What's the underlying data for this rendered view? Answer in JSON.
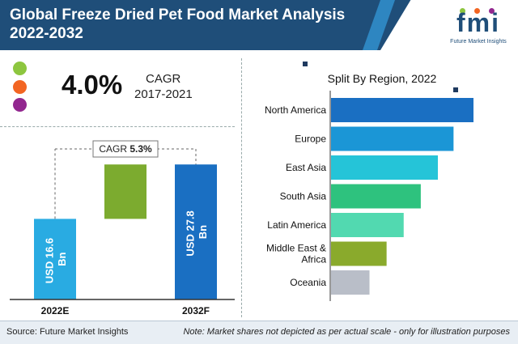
{
  "header": {
    "title_line1": "Global Freeze Dried Pet Food Market Analysis",
    "title_line2": "2022-2032",
    "logo_text": "fmi",
    "logo_sub": "Future Market Insights"
  },
  "cagr": {
    "value": "4.0%",
    "label": "CAGR",
    "period": "2017-2021",
    "dot_colors": [
      "#8dc63f",
      "#f26522",
      "#92278f"
    ]
  },
  "chart_data": [
    {
      "type": "bar",
      "title": "",
      "categories": [
        "2022E",
        "2032F"
      ],
      "values": [
        16.6,
        27.8
      ],
      "value_labels": [
        "USD 16.6 Bn",
        "USD 27.8 Bn"
      ],
      "value_label_lines": [
        [
          "USD 16.6",
          "Bn"
        ],
        [
          "USD 27.8",
          "Bn"
        ]
      ],
      "growth_label_prefix": "CAGR ",
      "growth_label_value": "5.3%",
      "colors": [
        "#29abe2",
        "#1a6fc2",
        "#7cab2f"
      ],
      "ylim": [
        0,
        30
      ]
    },
    {
      "type": "bar",
      "orientation": "horizontal",
      "title": "Split By Region, 2022",
      "categories": [
        "North America",
        "Europe",
        "East Asia",
        "South Asia",
        "Latin America",
        "Middle East & Africa",
        "Oceania"
      ],
      "category_lines": [
        [
          "North America"
        ],
        [
          "Europe"
        ],
        [
          "East Asia"
        ],
        [
          "South Asia"
        ],
        [
          "Latin America"
        ],
        [
          "Middle East &",
          "Africa"
        ],
        [
          "Oceania"
        ]
      ],
      "values": [
        100,
        86,
        75,
        63,
        51,
        39,
        27
      ],
      "colors": [
        "#1a6fc2",
        "#1b96d6",
        "#25c4d8",
        "#2ec27e",
        "#52d9b0",
        "#8aaa2c",
        "#b9bec8"
      ],
      "xlim": [
        0,
        100
      ]
    }
  ],
  "footer": {
    "source": "Source: Future Market Insights",
    "note": "Note: Market shares not depicted as per actual scale - only for illustration purposes"
  }
}
